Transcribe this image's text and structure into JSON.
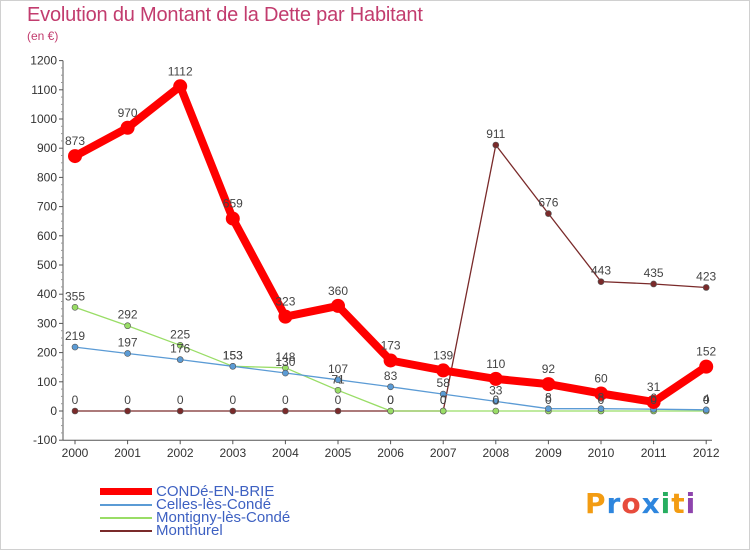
{
  "title": "Evolution du Montant de la Dette par Habitant",
  "unit": "(en €)",
  "brand": {
    "text": "Proxiti",
    "colors": [
      "#f39c12",
      "#2e86de",
      "#e74c3c",
      "#2e86de",
      "#27ae60",
      "#f39c12",
      "#8e44ad"
    ]
  },
  "chart_data": {
    "type": "line",
    "x": [
      "2000",
      "2001",
      "2002",
      "2003",
      "2004",
      "2005",
      "2006",
      "2007",
      "2008",
      "2009",
      "2010",
      "2011",
      "2012"
    ],
    "ylim": [
      -100,
      1200
    ],
    "yticks": [
      -100,
      0,
      100,
      200,
      300,
      400,
      500,
      600,
      700,
      800,
      900,
      1000,
      1100,
      1200
    ],
    "grid": false,
    "legend_position": "bottom-left",
    "series": [
      {
        "name": "CONDé-EN-BRIE",
        "color": "#ff0000",
        "width": 8,
        "marker": 7,
        "values": [
          873,
          970,
          1112,
          659,
          323,
          360,
          173,
          139,
          110,
          92,
          60,
          31,
          152
        ]
      },
      {
        "name": "Celles-lès-Condé",
        "color": "#5b9bd5",
        "width": 1.3,
        "marker": 3,
        "values": [
          219,
          197,
          176,
          153,
          130,
          107,
          83,
          58,
          33,
          8,
          8,
          6,
          4
        ]
      },
      {
        "name": "Montigny-lès-Condé",
        "color": "#99dd66",
        "width": 1.3,
        "marker": 3,
        "values": [
          355,
          292,
          225,
          153,
          148,
          71,
          0,
          0,
          0,
          0,
          0,
          0,
          0
        ]
      },
      {
        "name": "Monthurel",
        "color": "#7a2a2a",
        "width": 1.3,
        "marker": 3,
        "values": [
          0,
          0,
          0,
          0,
          0,
          0,
          0,
          0,
          911,
          676,
          443,
          435,
          423
        ]
      }
    ],
    "data_labels": [
      {
        "series": 0,
        "labels": [
          "873",
          "970",
          "1112",
          "659",
          "323",
          "360",
          "173",
          "139",
          "110",
          "92",
          "60",
          "31",
          "152"
        ]
      },
      {
        "series": 1,
        "labels": [
          "219",
          "197",
          "176",
          "153",
          "130",
          "107",
          "83",
          "58",
          "33",
          "8",
          "8",
          "6",
          "4"
        ]
      },
      {
        "series": 2,
        "labels": [
          "355",
          "292",
          "225",
          "153",
          "148",
          "71",
          "0",
          "0",
          "0",
          "0",
          "0",
          "0",
          "0"
        ]
      },
      {
        "series": 3,
        "labels": [
          "0",
          "0",
          "0",
          "0",
          "0",
          "0",
          "0",
          "0",
          "911",
          "676",
          "443",
          "435",
          "423"
        ]
      }
    ]
  }
}
